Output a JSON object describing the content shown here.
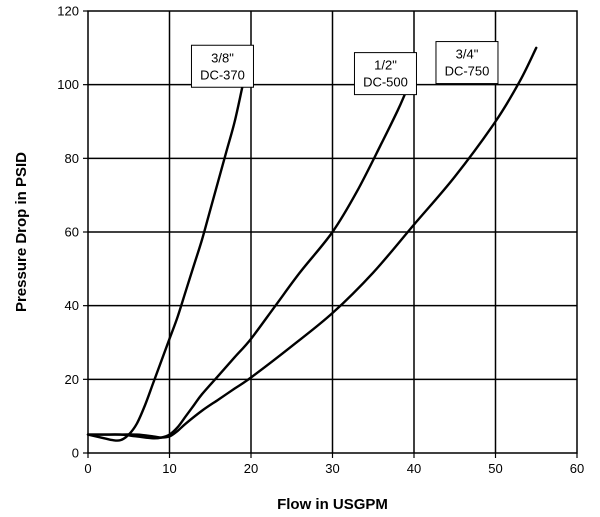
{
  "chart_data": {
    "type": "line",
    "title": "",
    "xlabel": "Flow in USGPM",
    "ylabel": "Pressure Drop in PSID",
    "xlim": [
      0,
      60
    ],
    "ylim": [
      0,
      120
    ],
    "xticks": [
      0,
      10,
      20,
      30,
      40,
      50,
      60
    ],
    "yticks": [
      0,
      20,
      40,
      60,
      80,
      100,
      120
    ],
    "grid": true,
    "series": [
      {
        "x": [
          0,
          2,
          3,
          4,
          5,
          6,
          7,
          8,
          9,
          10,
          11,
          12,
          13,
          14,
          15,
          16,
          17,
          18,
          19,
          20
        ],
        "values": [
          5,
          4,
          3.5,
          3.5,
          5,
          8,
          13,
          19,
          25,
          31,
          37,
          44,
          51,
          58,
          66,
          74,
          82,
          90,
          100,
          110
        ]
      },
      {
        "x": [
          0,
          2,
          4,
          6,
          8,
          9,
          10,
          11,
          12,
          13,
          14,
          16,
          18,
          20,
          23,
          26,
          30,
          33,
          36,
          38,
          39,
          40
        ],
        "values": [
          5,
          5,
          5,
          4.5,
          4,
          4.2,
          5,
          7,
          10,
          13,
          16,
          21,
          26,
          31,
          40,
          49,
          60,
          71,
          84,
          93,
          98,
          103
        ]
      },
      {
        "x": [
          0,
          3,
          6,
          8,
          9,
          10,
          11,
          12,
          14,
          16,
          18,
          20,
          25,
          30,
          35,
          40,
          45,
          50,
          53,
          55
        ],
        "values": [
          5,
          5,
          5,
          4.5,
          4.2,
          4.5,
          6,
          8,
          11.5,
          14.5,
          17.5,
          20.5,
          29,
          38,
          49,
          62,
          75,
          90,
          101,
          110
        ]
      }
    ],
    "annotations": [
      {
        "line1": "3/8\"",
        "line2": "DC-370",
        "x": 16.5,
        "y": 105
      },
      {
        "line1": "1/2\"",
        "line2": "DC-500",
        "x": 36.5,
        "y": 103
      },
      {
        "line1": "3/4\"",
        "line2": "DC-750",
        "x": 46.5,
        "y": 106
      }
    ]
  }
}
